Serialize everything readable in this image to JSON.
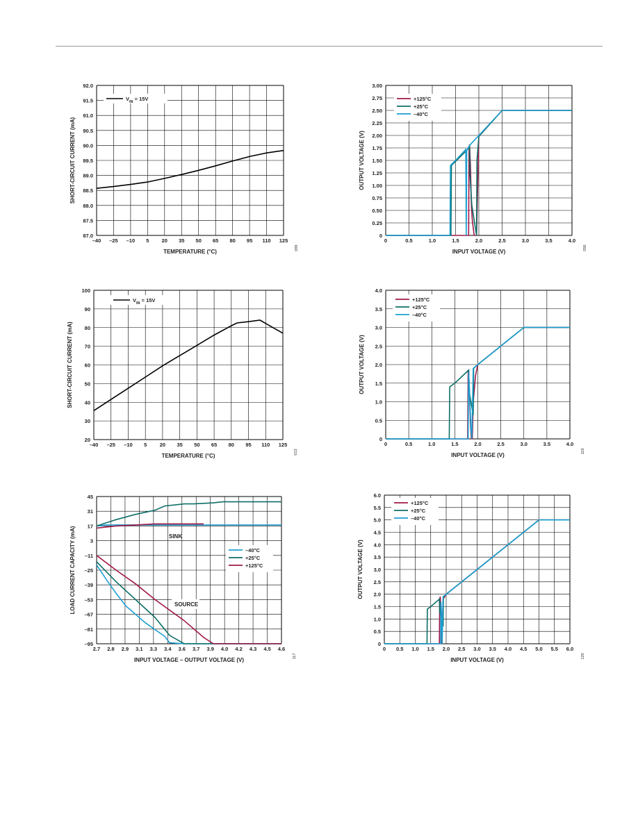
{
  "colors": {
    "c125": "#a0174a",
    "c25": "#0d6e66",
    "cm40": "#1b9fd1",
    "black": "#000000"
  },
  "chart_data": [
    {
      "type": "line",
      "xlabel": "TEMPERATURE (°C)",
      "ylabel": "SHORT-CIRCUIT CURRENT (mA)",
      "xlim": [
        -40,
        125
      ],
      "ylim": [
        87.0,
        92.0
      ],
      "xticks": [
        "–40",
        "–25",
        "–10",
        "5",
        "20",
        "35",
        "50",
        "65",
        "80",
        "95",
        "110",
        "125"
      ],
      "yticks": [
        "87.0",
        "87.5",
        "88.0",
        "88.5",
        "89.0",
        "89.5",
        "90.0",
        "90.5",
        "91.0",
        "91.5",
        "92.0"
      ],
      "grid": true,
      "figure_number": "099",
      "legend_text": "V",
      "legend_sub": "IN",
      "legend_rest": " = 15V",
      "series": [
        {
          "x": [
            -40,
            -25,
            -10,
            5,
            20,
            35,
            50,
            65,
            80,
            95,
            110,
            125
          ],
          "y": [
            88.57,
            88.63,
            88.7,
            88.78,
            88.9,
            89.03,
            89.17,
            89.32,
            89.48,
            89.63,
            89.75,
            89.83
          ]
        }
      ]
    },
    {
      "type": "line",
      "xlabel": "INPUT VOLTAGE (V)",
      "ylabel": "OUTPUT VOLTAGE (V)",
      "xlim": [
        0,
        4.0
      ],
      "ylim": [
        0,
        3.0
      ],
      "xticks": [
        "0",
        "0.5",
        "1.0",
        "1.5",
        "2.0",
        "2.5",
        "3.0",
        "3.5",
        "4.0"
      ],
      "yticks": [
        "0",
        "0.25",
        "0.50",
        "0.75",
        "1.00",
        "1.25",
        "1.50",
        "1.75",
        "2.00",
        "2.25",
        "2.50",
        "2.75",
        "3.00"
      ],
      "grid": true,
      "figure_number": "056",
      "series": [
        {
          "name": "+125°C",
          "x": [
            0,
            1.78,
            1.79,
            1.8,
            1.82,
            1.84,
            1.86,
            1.9,
            1.95,
            2.0,
            2.5,
            4.0
          ],
          "y": [
            0,
            0,
            1.7,
            1.82,
            1.4,
            0.6,
            0.3,
            0.0,
            0.0,
            1.98,
            2.5,
            2.5
          ]
        },
        {
          "name": "+25°C",
          "x": [
            0,
            1.4,
            1.41,
            1.5,
            1.8,
            1.81,
            1.85,
            1.95,
            1.96,
            2.0,
            2.5,
            4.0
          ],
          "y": [
            0,
            0,
            1.4,
            1.48,
            1.76,
            1.2,
            0.6,
            0.0,
            1.5,
            1.98,
            2.5,
            2.5
          ]
        },
        {
          "name": "–40°C",
          "x": [
            0,
            1.38,
            1.39,
            1.5,
            1.72,
            1.73,
            1.74,
            1.8,
            1.9,
            2.0,
            2.5,
            4.0
          ],
          "y": [
            0,
            0,
            1.4,
            1.5,
            1.72,
            0.0,
            1.7,
            1.8,
            1.9,
            2.0,
            2.5,
            2.5
          ]
        }
      ]
    },
    {
      "type": "line",
      "xlabel": "TEMPERATURE (°C)",
      "ylabel": "SHORT-CIRCUIT CURRENT (mA)",
      "xlim": [
        -40,
        125
      ],
      "ylim": [
        20,
        100
      ],
      "xticks": [
        "–40",
        "–25",
        "–10",
        "5",
        "20",
        "35",
        "50",
        "65",
        "80",
        "95",
        "110",
        "125"
      ],
      "yticks": [
        "20",
        "30",
        "40",
        "50",
        "60",
        "70",
        "80",
        "90",
        "100"
      ],
      "grid": true,
      "figure_number": "013",
      "legend_text": "V",
      "legend_sub": "IN",
      "legend_rest": " = 15V",
      "series": [
        {
          "x": [
            -40,
            -25,
            -10,
            5,
            20,
            35,
            50,
            65,
            80,
            85,
            95,
            105,
            115,
            125
          ],
          "y": [
            35.5,
            41.5,
            47.5,
            53.5,
            59.5,
            65,
            70.5,
            76,
            81,
            82.5,
            83.2,
            84,
            80.5,
            77
          ]
        }
      ]
    },
    {
      "type": "line",
      "xlabel": "INPUT VOLTAGE (V)",
      "ylabel": "OUTPUT VOLTAGE (V)",
      "xlim": [
        0,
        4.0
      ],
      "ylim": [
        0,
        4.0
      ],
      "xticks": [
        "0",
        "0.5",
        "1.0",
        "1.5",
        "2.0",
        "2.5",
        "3.0",
        "3.5",
        "4.0"
      ],
      "yticks": [
        "0",
        "0.5",
        "1.0",
        "1.5",
        "2.0",
        "2.5",
        "3.0",
        "3.5",
        "4.0"
      ],
      "grid": true,
      "figure_number": "118",
      "series": [
        {
          "name": "+125°C",
          "x": [
            0,
            1.78,
            1.79,
            1.8,
            1.82,
            1.84,
            1.86,
            1.88,
            1.9,
            1.95,
            2.0,
            3.0,
            4.0
          ],
          "y": [
            0,
            0,
            1.8,
            1.85,
            1.2,
            0.4,
            0.0,
            0.0,
            1.0,
            1.7,
            2.0,
            3.0,
            3.0
          ]
        },
        {
          "name": "+25°C",
          "x": [
            0,
            1.38,
            1.39,
            1.5,
            1.8,
            1.81,
            1.85,
            1.9,
            1.91,
            2.0,
            3.0,
            4.0
          ],
          "y": [
            0,
            0,
            1.4,
            1.5,
            1.85,
            1.3,
            1.0,
            0.65,
            1.9,
            2.0,
            3.0,
            3.0
          ]
        },
        {
          "name": "–40°C",
          "x": [
            0,
            1.79,
            1.8,
            1.82,
            1.85,
            1.87,
            1.9,
            2.0,
            3.0,
            4.0
          ],
          "y": [
            0,
            0,
            1.8,
            1.3,
            0.3,
            0.0,
            1.9,
            2.0,
            3.0,
            3.0
          ]
        }
      ]
    },
    {
      "type": "line",
      "xlabel": "INPUT VOLTAGE – OUTPUT VOLTAGE (V)",
      "ylabel": "LOAD CURRENT CAPACITY (mA)",
      "xlim": [
        2.7,
        4.6
      ],
      "ylim": [
        -95,
        45
      ],
      "xticks": [
        "2.7",
        "2.8",
        "2.9",
        "3.1",
        "3.3",
        "3.4",
        "3.6",
        "3.7",
        "3.9",
        "4.0",
        "4.2",
        "4.3",
        "4.5",
        "4.6"
      ],
      "yticks": [
        "–95",
        "–81",
        "–67",
        "–53",
        "–39",
        "–25",
        "–11",
        "3",
        "17",
        "31",
        "45"
      ],
      "grid": true,
      "figure_number": "117",
      "annotations": [
        "SINK",
        "SOURCE"
      ],
      "series": [
        {
          "name": "–40°C",
          "x": [
            2.7,
            2.8,
            2.9,
            3.0,
            3.1,
            3.3,
            3.4,
            3.5,
            4.6,
            2.7,
            2.8,
            2.9,
            3.0,
            3.2,
            3.4,
            3.45,
            3.6,
            4.6
          ],
          "y": [
            17,
            18,
            18,
            18,
            18,
            18,
            18,
            18,
            18,
            -20,
            -34,
            -47,
            -59,
            -75,
            -88,
            -94,
            -95,
            -95
          ]
        },
        {
          "name": "+25°C",
          "x": [
            2.7,
            2.9,
            3.1,
            3.3,
            3.4,
            3.6,
            3.7,
            3.9,
            4.0,
            4.6,
            2.7,
            2.9,
            3.1,
            3.3,
            3.45,
            3.6,
            4.6
          ],
          "y": [
            17,
            23,
            28,
            32,
            36,
            38,
            38,
            39,
            40,
            40,
            -17,
            -36,
            -53,
            -70,
            -87,
            -95,
            -95
          ]
        },
        {
          "name": "+125°C",
          "x": [
            2.7,
            2.8,
            2.9,
            3.1,
            3.3,
            3.6,
            3.8,
            2.7,
            2.9,
            3.1,
            3.3,
            3.6,
            3.8,
            3.9,
            4.6
          ],
          "y": [
            15,
            16,
            17,
            18,
            19,
            19,
            19,
            -11,
            -25,
            -38,
            -53,
            -73,
            -89,
            -95,
            -95
          ]
        }
      ]
    },
    {
      "type": "line",
      "xlabel": "INPUT VOLTAGE (V)",
      "ylabel": "OUTPUT VOLTAGE (V)",
      "xlim": [
        0,
        6.0
      ],
      "ylim": [
        0,
        6.0
      ],
      "xticks": [
        "0",
        "0.5",
        "1.0",
        "1.5",
        "2.0",
        "2.5",
        "3.0",
        "3.5",
        "4.0",
        "4.5",
        "5.0",
        "5.5",
        "6.0"
      ],
      "yticks": [
        "0",
        "0.5",
        "1.0",
        "1.5",
        "2.0",
        "2.5",
        "3.0",
        "3.5",
        "4.0",
        "4.5",
        "5.0",
        "5.5",
        "6.0"
      ],
      "grid": true,
      "figure_number": "120",
      "series": [
        {
          "name": "+125°C",
          "x": [
            0,
            1.78,
            1.79,
            1.81,
            1.83,
            1.85,
            1.9,
            1.95,
            2.0,
            5.0,
            6.0
          ],
          "y": [
            0,
            0,
            1.8,
            1.9,
            1.2,
            0.0,
            1.8,
            1.9,
            2.0,
            5.0,
            5.0
          ]
        },
        {
          "name": "+25°C",
          "x": [
            0,
            1.38,
            1.39,
            1.5,
            1.78,
            1.79,
            1.85,
            1.9,
            1.91,
            2.0,
            5.0,
            6.0
          ],
          "y": [
            0,
            0,
            1.4,
            1.5,
            1.8,
            1.3,
            1.0,
            0.7,
            1.9,
            2.0,
            5.0,
            5.0
          ]
        },
        {
          "name": "–40°C",
          "x": [
            0,
            1.82,
            1.83,
            1.85,
            1.87,
            1.9,
            2.0,
            5.0,
            6.0
          ],
          "y": [
            0,
            0,
            1.7,
            1.2,
            0.0,
            1.9,
            2.0,
            5.0,
            5.0
          ]
        }
      ]
    }
  ]
}
